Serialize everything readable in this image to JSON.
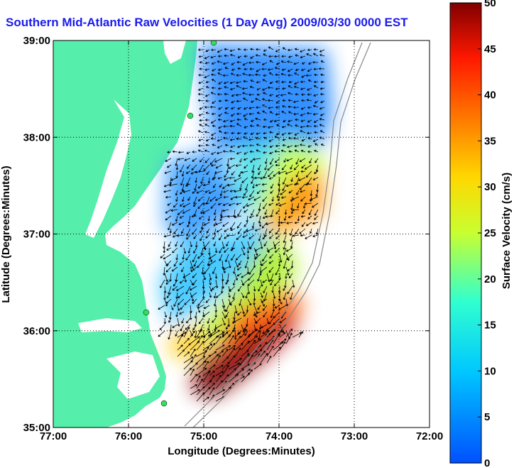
{
  "chart_data": {
    "type": "heatmap",
    "title": "Southern Mid-Atlantic Raw Velocities (1 Day Avg) 2009/03/30 0000 EST",
    "xlabel": "Longitude (Degrees:Minutes)",
    "ylabel": "Latitude (Degrees:Minutes)",
    "colorbar_label": "Surface Velocity (cm/s)",
    "xlim": [
      -77,
      -72
    ],
    "ylim": [
      35,
      39
    ],
    "x_ticks": [
      {
        "value": -77,
        "label": "77:00"
      },
      {
        "value": -76,
        "label": "76:00"
      },
      {
        "value": -75,
        "label": "75:00"
      },
      {
        "value": -74,
        "label": "74:00"
      },
      {
        "value": -73,
        "label": "73:00"
      },
      {
        "value": -72,
        "label": "72:00"
      }
    ],
    "y_ticks": [
      {
        "value": 35,
        "label": "35:00"
      },
      {
        "value": 36,
        "label": "36:00"
      },
      {
        "value": 37,
        "label": "37:00"
      },
      {
        "value": 38,
        "label": "38:00"
      },
      {
        "value": 39,
        "label": "39:00"
      }
    ],
    "colorbar_range": [
      0,
      50
    ],
    "colorbar_ticks": [
      0,
      5,
      10,
      15,
      20,
      25,
      30,
      35,
      40,
      45,
      50
    ],
    "grid": true,
    "colormap": "jet",
    "land_color": "#55eeaa",
    "regions": [
      {
        "lon": -74.6,
        "lat": 38.6,
        "speed": 10
      },
      {
        "lon": -74.0,
        "lat": 38.0,
        "speed": 14
      },
      {
        "lon": -73.7,
        "lat": 37.4,
        "speed": 30
      },
      {
        "lon": -74.4,
        "lat": 37.6,
        "speed": 18
      },
      {
        "lon": -75.0,
        "lat": 37.7,
        "speed": 6
      },
      {
        "lon": -74.6,
        "lat": 36.6,
        "speed": 18
      },
      {
        "lon": -74.0,
        "lat": 36.1,
        "speed": 38
      },
      {
        "lon": -74.4,
        "lat": 35.6,
        "speed": 46
      },
      {
        "lon": -75.0,
        "lat": 35.8,
        "speed": 24
      }
    ]
  }
}
